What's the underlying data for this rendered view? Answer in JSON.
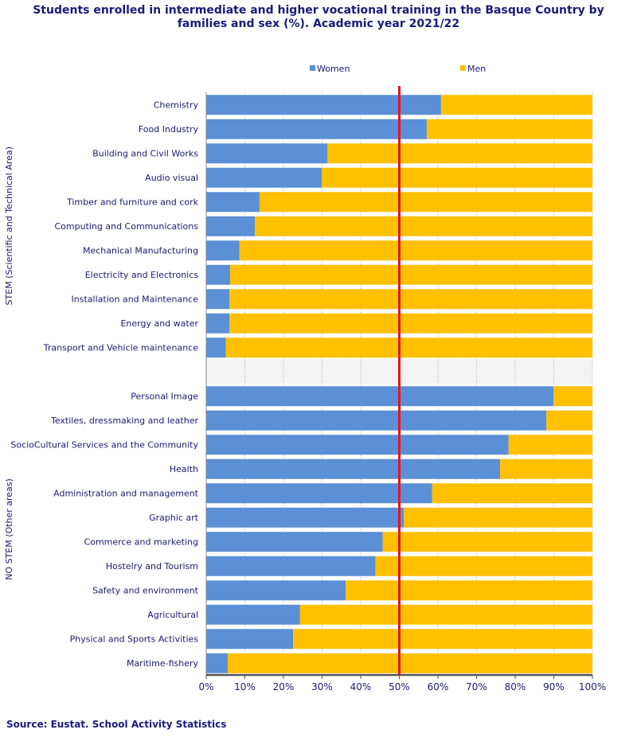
{
  "title_line1": "Students enrolled in intermediate and higher vocational training in the Basque Country by",
  "title_line2": "families and sex (%). Academic year 2021/22",
  "source": "Source: Eustat. School Activity Statistics",
  "colors": {
    "women": "#5b8fd6",
    "men": "#ffc000",
    "reference_line": "#e8141d",
    "grid": "#888888"
  },
  "chart_data": {
    "type": "bar",
    "orientation": "horizontal",
    "stacked": true,
    "title": "Students enrolled in intermediate and higher vocational training in the Basque Country by families and sex (%). Academic year 2021/22",
    "xlim": [
      0,
      100
    ],
    "x_ticks": [
      "0%",
      "10%",
      "20%",
      "30%",
      "40%",
      "50%",
      "60%",
      "70%",
      "80%",
      "90%",
      "100%"
    ],
    "reference_line": 50,
    "legend": [
      "Women",
      "Men"
    ],
    "legend_position": "top",
    "groups": [
      {
        "name": "STEM (Scientific and Technical Area)",
        "categories": [
          "Chemistry",
          "Food Industry",
          "Building and Civil Works",
          "Audio visual",
          "Timber and furniture and cork",
          "Computing and Communications",
          "Mechanical Manufacturing",
          "Electricity and Electronics",
          "Installation and Maintenance",
          "Energy and water",
          "Transport and Vehicle maintenance"
        ],
        "women": [
          60.8,
          57.1,
          31.4,
          29.9,
          13.8,
          12.6,
          8.6,
          6.2,
          6.0,
          6.0,
          5.1
        ]
      },
      {
        "name": "NO STEM (Other areas)",
        "categories": [
          "Personal Image",
          "Textiles, dressmaking and leather",
          "SocioCultural Services and the Community",
          "Health",
          "Administration and management",
          "Graphic art",
          "Commerce and marketing",
          "Hostelry and Tourism",
          "Safety and environment",
          "Agricultural",
          "Physical and Sports Activities",
          "Maritime-fishery"
        ],
        "women": [
          89.9,
          88.1,
          78.3,
          76.1,
          58.5,
          51.2,
          45.7,
          43.8,
          36.1,
          24.3,
          22.5,
          5.6
        ]
      }
    ]
  }
}
